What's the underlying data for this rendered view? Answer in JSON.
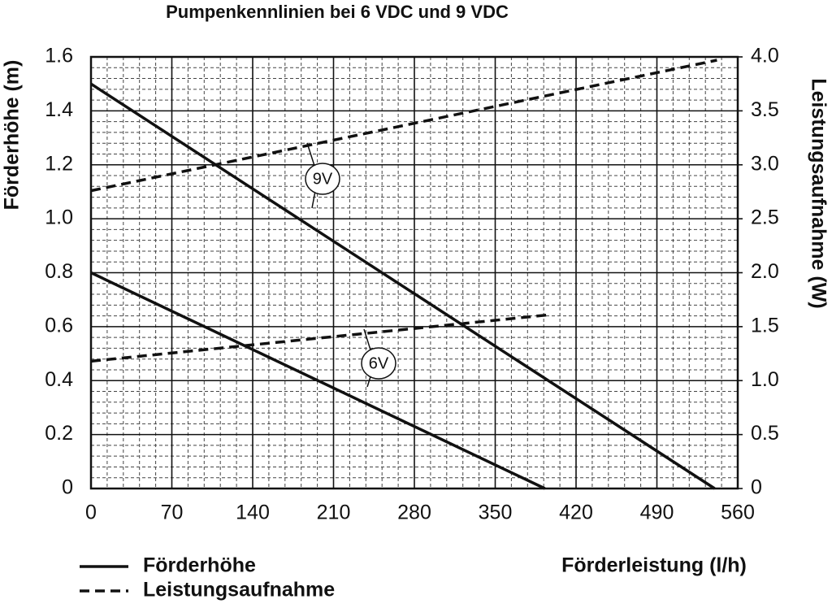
{
  "chart_data": {
    "type": "line",
    "title": "Pumpenkennlinien bei 6 VDC und 9 VDC",
    "x_label": "Förderleistung (l/h)",
    "y_label": "Förderhöhe (m)",
    "y2_label": "Leistungsaufnahme (W)",
    "xlim": [
      0,
      560
    ],
    "xticks": [
      0,
      70,
      140,
      210,
      280,
      350,
      420,
      490,
      560
    ],
    "ylim": [
      0,
      1.6
    ],
    "yticks": [
      0,
      0.2,
      0.4,
      0.6,
      0.8,
      {
        "value": 1,
        "label": "1.0"
      },
      1.2,
      1.4,
      1.6
    ],
    "y2lim": [
      0,
      4
    ],
    "y2ticks": [
      0,
      0.5,
      {
        "value": 1,
        "label": "1.0"
      },
      1.5,
      {
        "value": 2,
        "label": "2.0"
      },
      2.5,
      {
        "value": 3,
        "label": "3.0"
      },
      3.5,
      {
        "value": 4,
        "label": "4.0"
      }
    ],
    "grid": true,
    "minor_grid": true,
    "legend": [
      {
        "label": "Förderhöhe",
        "dashed": false
      },
      {
        "label": "Leistungsaufnahme",
        "dashed": true
      }
    ],
    "annotations": [
      "9V",
      "6V"
    ],
    "series": [
      {
        "color": "#111111",
        "dashed": false,
        "x": [
          0,
          540
        ],
        "values": [
          1.5,
          0
        ]
      },
      {
        "color": "#111111",
        "dashed": false,
        "x": [
          0,
          393
        ],
        "values": [
          0.8,
          0
        ]
      },
      {
        "color": "#111111",
        "dashed": true,
        "axis": "y2",
        "x": [
          0,
          542
        ],
        "values": [
          2.76,
          3.97
        ]
      },
      {
        "color": "#111111",
        "dashed": true,
        "axis": "y2",
        "x": [
          0,
          397
        ],
        "values": [
          1.18,
          1.61
        ]
      }
    ]
  }
}
